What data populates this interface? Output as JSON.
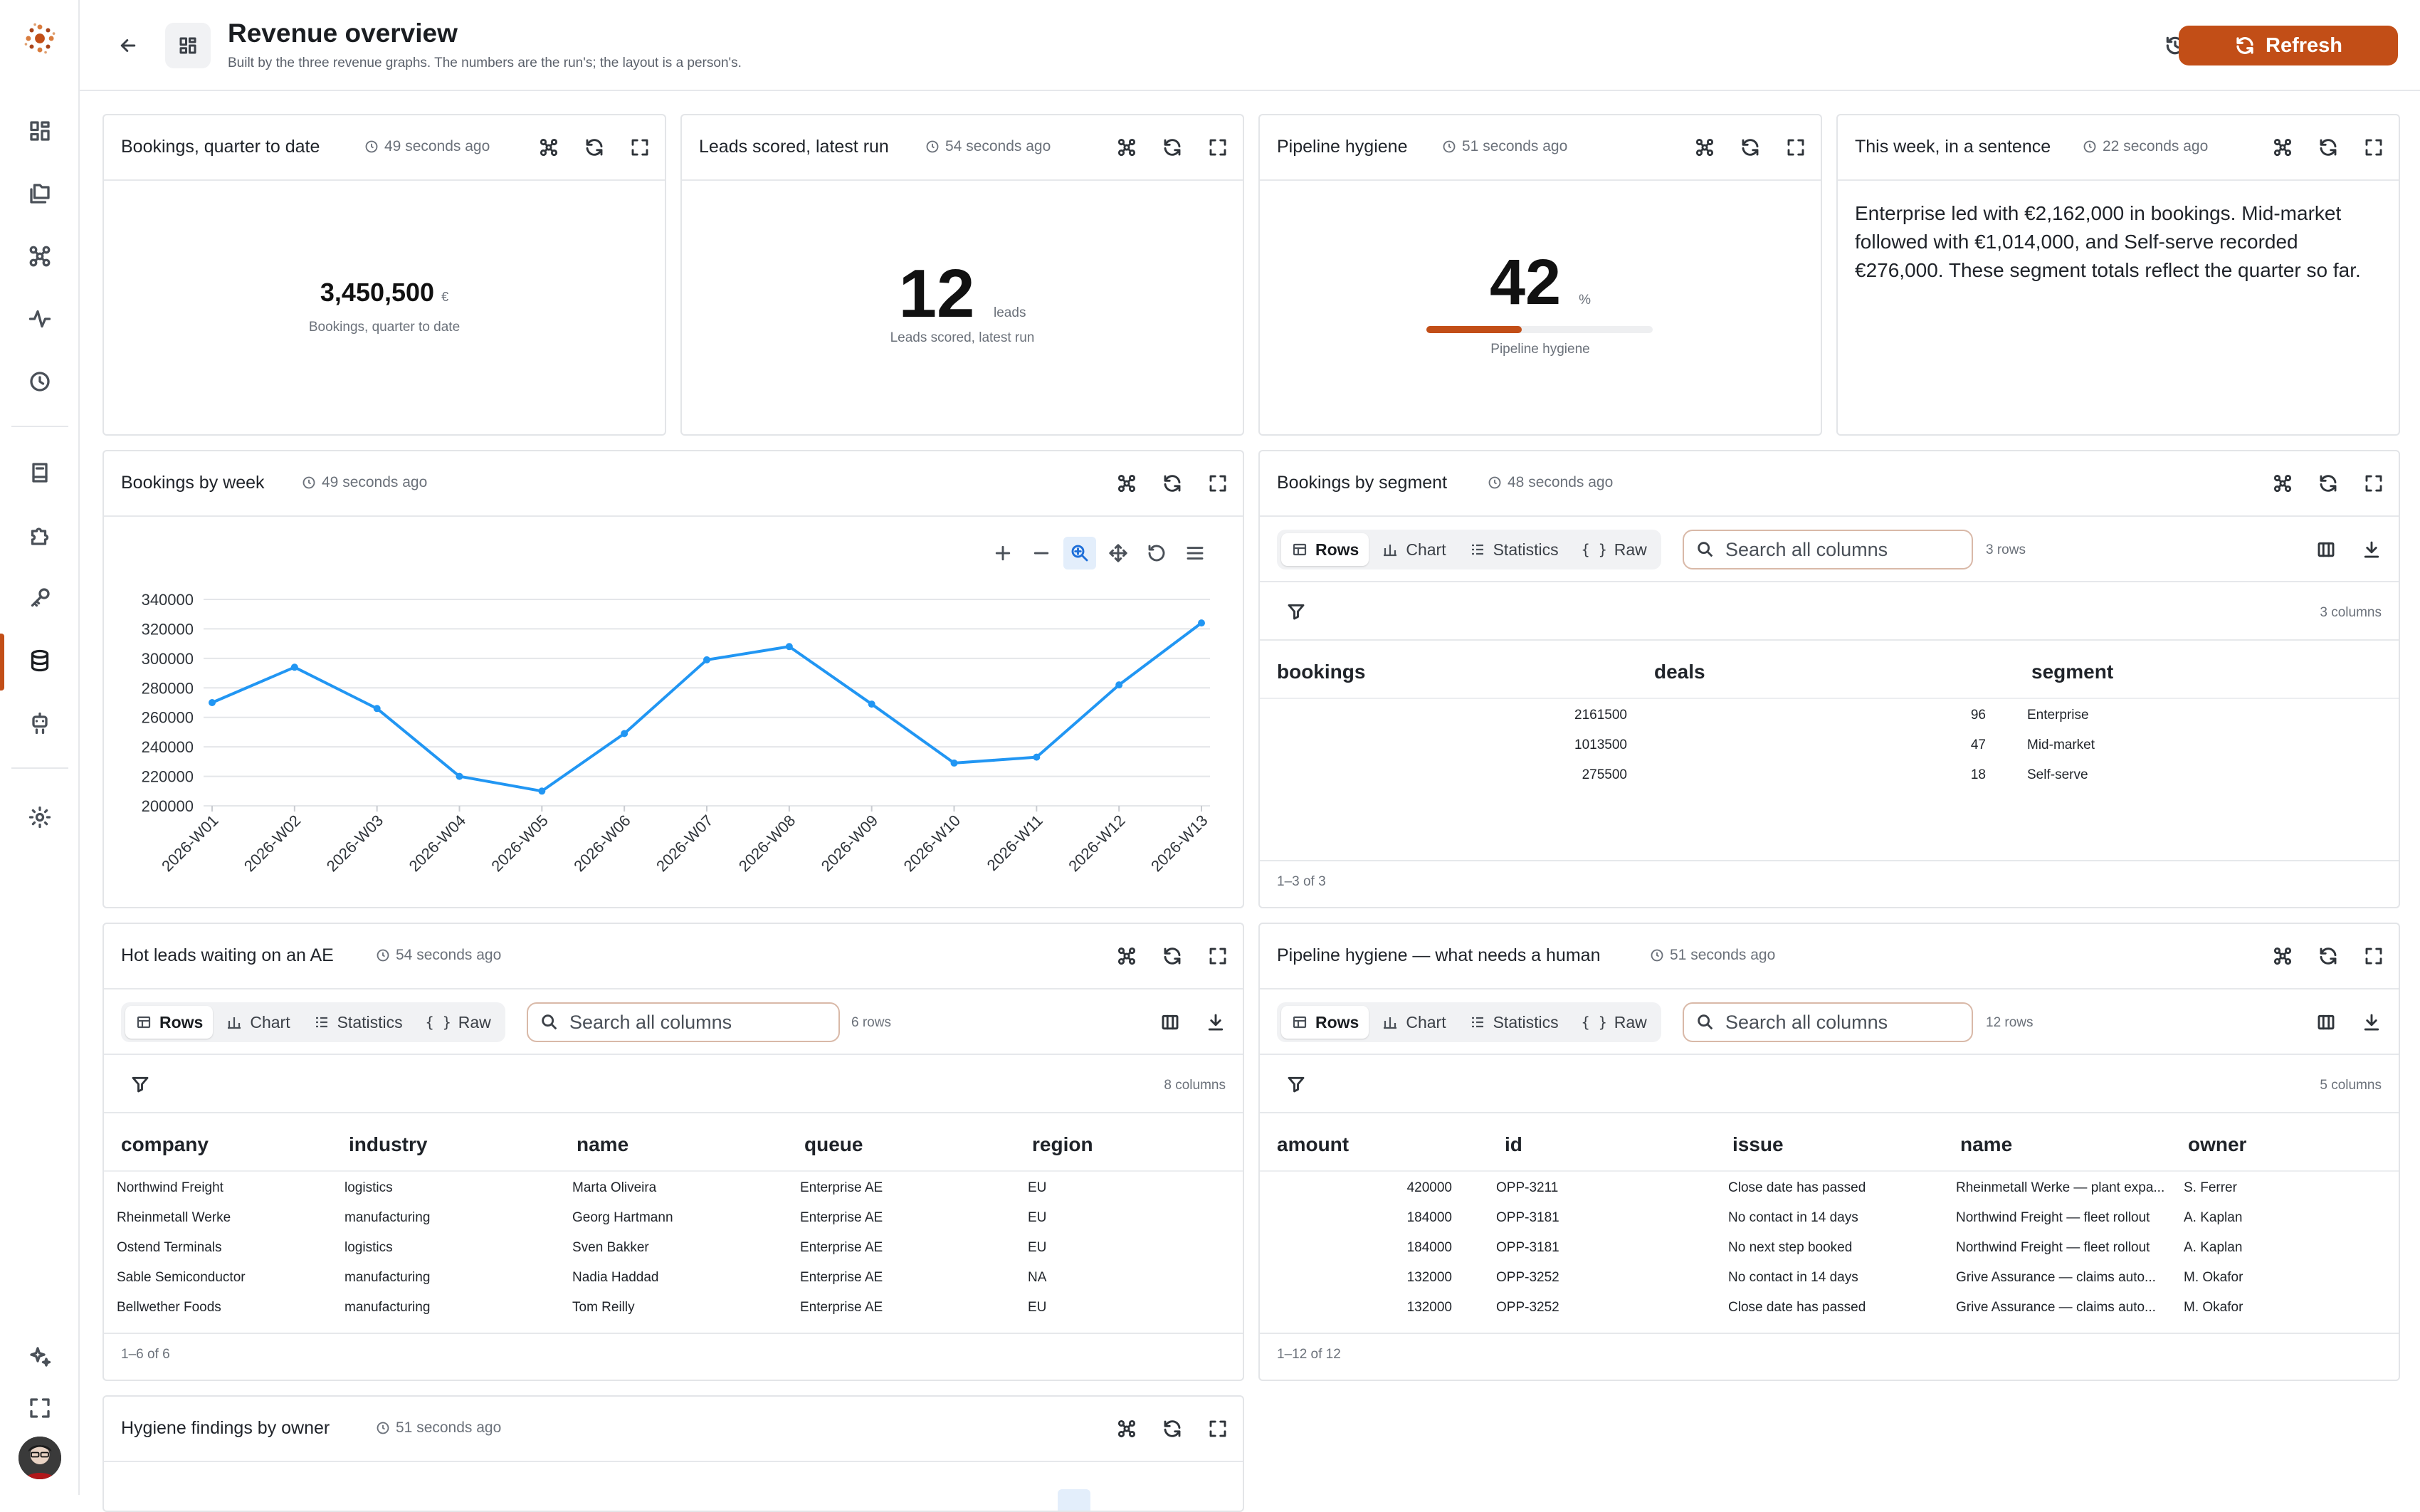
{
  "app": {
    "title": "Revenue overview",
    "subtitle": "Built by the three revenue graphs. The numbers are the run's; the layout is a person's."
  },
  "header": {
    "refresh_label": "Refresh"
  },
  "sidebar": {
    "icons": [
      "dashboard-icon",
      "folders-icon",
      "graph-icon",
      "activity-icon",
      "history-icon",
      "book-icon",
      "puzzle-icon",
      "key-icon",
      "database-icon",
      "robot-icon",
      "settings-icon",
      "sparkles-icon",
      "fullscreen-icon",
      "avatar"
    ]
  },
  "accent": "#c24e17",
  "cards": {
    "bookings_qtd": {
      "title": "Bookings, quarter to date",
      "time": "49 seconds ago",
      "value": "3,450,500",
      "unit": "€",
      "label": "Bookings, quarter to date"
    },
    "leads_scored": {
      "title": "Leads scored, latest run",
      "time": "54 seconds ago",
      "value": "12",
      "unit": "leads",
      "label": "Leads scored, latest run"
    },
    "pipeline_hygiene": {
      "title": "Pipeline hygiene",
      "time": "51 seconds ago",
      "value": "42",
      "unit": "%",
      "label": "Pipeline hygiene",
      "progress": 0.42
    },
    "this_week": {
      "title": "This week, in a sentence",
      "time": "22 seconds ago",
      "text": "Enterprise led with €2,162,000 in bookings. Mid-market followed with €1,014,000, and Self-serve recorded €276,000. These segment totals reflect the quarter so far."
    },
    "bookings_week": {
      "title": "Bookings by week",
      "time": "49 seconds ago"
    },
    "bookings_segment": {
      "title": "Bookings by segment",
      "time": "48 seconds ago",
      "tabs": [
        "Rows",
        "Chart",
        "Statistics",
        "Raw"
      ],
      "search_placeholder": "Search all columns",
      "row_count": "3 rows",
      "col_count": "3 columns",
      "footer": "1–3 of 3",
      "columns": [
        "bookings",
        "deals",
        "segment"
      ],
      "rows": [
        [
          "2161500",
          "96",
          "Enterprise"
        ],
        [
          "1013500",
          "47",
          "Mid-market"
        ],
        [
          "275500",
          "18",
          "Self-serve"
        ]
      ]
    },
    "hot_leads": {
      "title": "Hot leads waiting on an AE",
      "time": "54 seconds ago",
      "tabs": [
        "Rows",
        "Chart",
        "Statistics",
        "Raw"
      ],
      "search_placeholder": "Search all columns",
      "row_count": "6 rows",
      "col_count": "8 columns",
      "footer": "1–6 of 6",
      "columns": [
        "company",
        "industry",
        "name",
        "queue",
        "region"
      ],
      "rows": [
        [
          "Northwind Freight",
          "logistics",
          "Marta Oliveira",
          "Enterprise AE",
          "EU"
        ],
        [
          "Rheinmetall Werke",
          "manufacturing",
          "Georg Hartmann",
          "Enterprise AE",
          "EU"
        ],
        [
          "Ostend Terminals",
          "logistics",
          "Sven Bakker",
          "Enterprise AE",
          "EU"
        ],
        [
          "Sable Semiconductor",
          "manufacturing",
          "Nadia Haddad",
          "Enterprise AE",
          "NA"
        ],
        [
          "Bellwether Foods",
          "manufacturing",
          "Tom Reilly",
          "Enterprise AE",
          "EU"
        ]
      ]
    },
    "hygiene_human": {
      "title": "Pipeline hygiene — what needs a human",
      "time": "51 seconds ago",
      "tabs": [
        "Rows",
        "Chart",
        "Statistics",
        "Raw"
      ],
      "search_placeholder": "Search all columns",
      "row_count": "12 rows",
      "col_count": "5 columns",
      "footer": "1–12 of 12",
      "columns": [
        "amount",
        "id",
        "issue",
        "name",
        "owner"
      ],
      "rows": [
        [
          "420000",
          "OPP-3211",
          "Close date has passed",
          "Rheinmetall Werke — plant expa...",
          "S. Ferrer"
        ],
        [
          "184000",
          "OPP-3181",
          "No contact in 14 days",
          "Northwind Freight — fleet rollout",
          "A. Kaplan"
        ],
        [
          "184000",
          "OPP-3181",
          "No next step booked",
          "Northwind Freight — fleet rollout",
          "A. Kaplan"
        ],
        [
          "132000",
          "OPP-3252",
          "No contact in 14 days",
          "Grive Assurance — claims auto...",
          "M. Okafor"
        ],
        [
          "132000",
          "OPP-3252",
          "Close date has passed",
          "Grive Assurance — claims auto...",
          "M. Okafor"
        ]
      ]
    },
    "hygiene_owner": {
      "title": "Hygiene findings by owner",
      "time": "51 seconds ago"
    }
  },
  "chart_data": {
    "type": "line",
    "title": "",
    "xlabel": "",
    "ylabel": "",
    "x": [
      "2026-W01",
      "2026-W02",
      "2026-W03",
      "2026-W04",
      "2026-W05",
      "2026-W06",
      "2026-W07",
      "2026-W08",
      "2026-W09",
      "2026-W10",
      "2026-W11",
      "2026-W12",
      "2026-W13"
    ],
    "series": [
      {
        "values": [
          270000,
          294000,
          266000,
          220000,
          210000,
          249000,
          299000,
          308000,
          269000,
          229000,
          233000,
          282000,
          324000
        ]
      }
    ],
    "yticks": [
      "340000",
      "320000",
      "300000",
      "280000",
      "260000",
      "240000",
      "220000",
      "200000"
    ],
    "ylim": [
      200000,
      340000
    ],
    "grid": true,
    "color": "#2196f3"
  }
}
